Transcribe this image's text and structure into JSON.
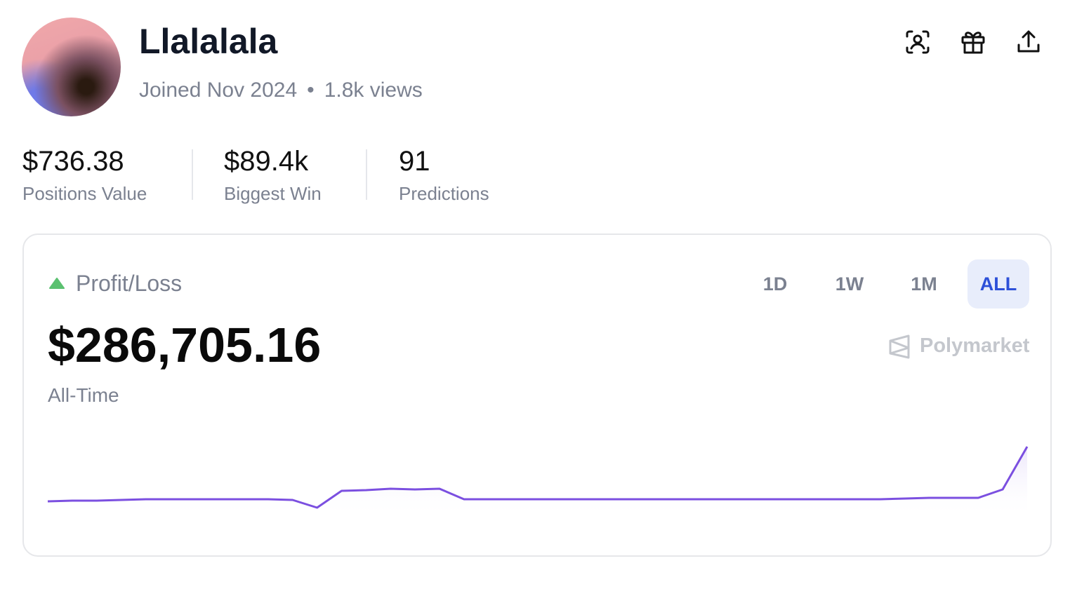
{
  "profile": {
    "name": "Llalalala",
    "joined": "Joined Nov 2024",
    "views": "1.8k views"
  },
  "stats": [
    {
      "value": "$736.38",
      "label": "Positions Value"
    },
    {
      "value": "$89.4k",
      "label": "Biggest Win"
    },
    {
      "value": "91",
      "label": "Predictions"
    }
  ],
  "card": {
    "title": "Profit/Loss",
    "tabs": [
      "1D",
      "1W",
      "1M",
      "ALL"
    ],
    "selected_tab": 3,
    "amount": "$286,705.16",
    "period": "All-Time",
    "brand": "Polymarket",
    "chart_data": {
      "type": "line",
      "color": "#7b4fe0",
      "values": [
        25,
        26,
        26,
        27,
        28,
        28,
        28,
        28,
        28,
        28,
        27,
        16,
        40,
        41,
        43,
        42,
        43,
        28,
        28,
        28,
        28,
        28,
        28,
        28,
        28,
        28,
        28,
        28,
        28,
        28,
        28,
        28,
        28,
        28,
        28,
        29,
        30,
        30,
        30,
        42,
        103
      ]
    }
  }
}
